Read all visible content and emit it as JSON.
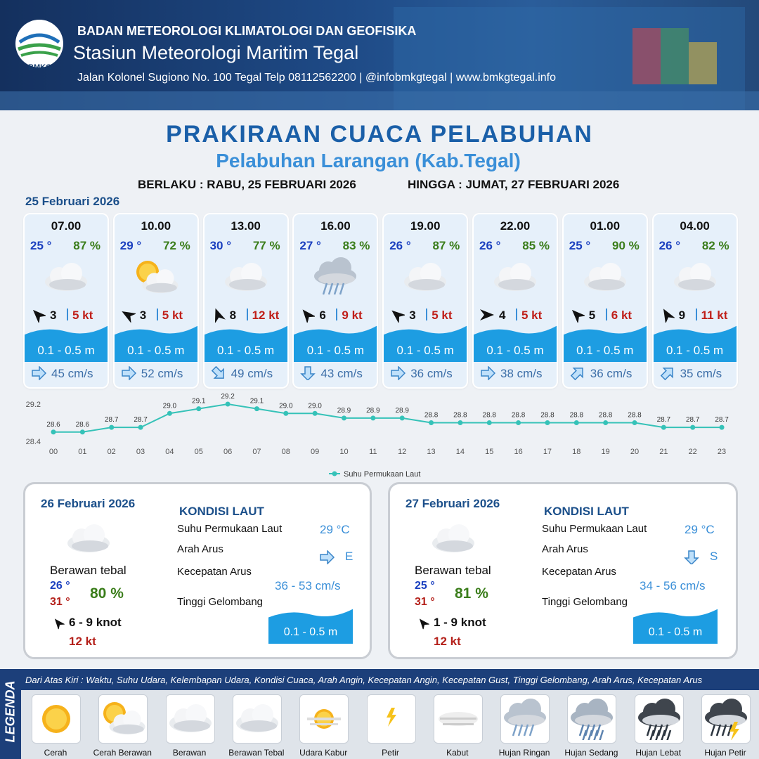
{
  "header": {
    "agency": "BADAN METEOROLOGI KLIMATOLOGI DAN GEOFISIKA",
    "station": "Stasiun Meteorologi Maritim Tegal",
    "address": "Jalan Kolonel Sugiono No. 100 Tegal Telp 08112562200 | @infobmkgtegal  | www.bmkgtegal.info",
    "logo_text": "BMKG"
  },
  "title": "PRAKIRAAN CUACA PELABUHAN",
  "subtitle": "Pelabuhan Larangan (Kab.Tegal)",
  "valid_from": "BERLAKU : RABU, 25 FEBRUARI 2026",
  "valid_to": "HINGGA :  JUMAT, 27 FEBRUARI 2026",
  "day1": {
    "date": "25 Februari 2026",
    "slots": [
      {
        "time": "07.00",
        "temp": "25 °",
        "humidity": "87 %",
        "wind": "3",
        "gust": "5 kt",
        "wave": "0.1 - 0.5 m",
        "current": "45 cm/s"
      },
      {
        "time": "10.00",
        "temp": "29 °",
        "humidity": "72 %",
        "wind": "3",
        "gust": "5 kt",
        "wave": "0.1 - 0.5 m",
        "current": "52 cm/s"
      },
      {
        "time": "13.00",
        "temp": "30 °",
        "humidity": "77 %",
        "wind": "8",
        "gust": "12 kt",
        "wave": "0.1 - 0.5 m",
        "current": "49 cm/s"
      },
      {
        "time": "16.00",
        "temp": "27 °",
        "humidity": "83 %",
        "wind": "6",
        "gust": "9 kt",
        "wave": "0.1 - 0.5 m",
        "current": "43 cm/s"
      },
      {
        "time": "19.00",
        "temp": "26 °",
        "humidity": "87 %",
        "wind": "3",
        "gust": "5 kt",
        "wave": "0.1 - 0.5 m",
        "current": "36 cm/s"
      },
      {
        "time": "22.00",
        "temp": "26 °",
        "humidity": "85 %",
        "wind": "4",
        "gust": "5 kt",
        "wave": "0.1 - 0.5 m",
        "current": "38 cm/s"
      },
      {
        "time": "01.00",
        "temp": "25 °",
        "humidity": "90 %",
        "wind": "5",
        "gust": "6 kt",
        "wave": "0.1 - 0.5 m",
        "current": "36 cm/s"
      },
      {
        "time": "04.00",
        "temp": "26 °",
        "humidity": "82 %",
        "wind": "9",
        "gust": "11 kt",
        "wave": "0.1 - 0.5 m",
        "current": "35 cm/s"
      }
    ]
  },
  "chart_data": {
    "type": "line",
    "categories": [
      "00",
      "01",
      "02",
      "03",
      "04",
      "05",
      "06",
      "07",
      "08",
      "09",
      "10",
      "11",
      "12",
      "13",
      "14",
      "15",
      "16",
      "17",
      "18",
      "19",
      "20",
      "21",
      "22",
      "23"
    ],
    "series": [
      {
        "name": "Suhu Permukaan Laut",
        "color": "#35c2b8",
        "values": [
          28.6,
          28.6,
          28.7,
          28.7,
          29.0,
          29.1,
          29.2,
          29.1,
          29.0,
          29.0,
          28.9,
          28.9,
          28.9,
          28.8,
          28.8,
          28.8,
          28.8,
          28.8,
          28.8,
          28.8,
          28.8,
          28.7,
          28.7,
          28.7
        ],
        "value_labels": [
          "28.6",
          "28.6",
          "28.7",
          "28.7",
          "29.0",
          "29.1",
          "29.2",
          "29.1",
          "29.0",
          "29.0",
          "28.9",
          "28.9",
          "28.9",
          "28.8",
          "28.8",
          "28.8",
          "28.8",
          "28.8",
          "28.8",
          "28.8",
          "28.8",
          "28.7",
          "28.7",
          "28.7"
        ]
      }
    ],
    "ylim": [
      28.4,
      29.2
    ],
    "yticks": [
      28.4,
      29.2
    ],
    "grid": false,
    "legend": "bottom"
  },
  "day2": {
    "date": "26 Februari 2026",
    "condition": "Berawan tebal",
    "temp_min": "26 °",
    "temp_max": "31 °",
    "humidity": "80 %",
    "wind": "6 - 9 knot",
    "gust": "12 kt",
    "sea_heading": "KONDISI LAUT",
    "sea_labels": [
      "Suhu Permukaan Laut",
      "Arah Arus",
      "Kecepatan Arus",
      "Tinggi Gelombang"
    ],
    "sst": "29 °C",
    "current_dir": "E",
    "current_speed": "36  - 53 cm/s",
    "wave": "0.1 - 0.5 m"
  },
  "day3": {
    "date": "27 Februari 2026",
    "condition": "Berawan tebal",
    "temp_min": "25 °",
    "temp_max": "31 °",
    "humidity": "81 %",
    "wind": "1 - 9 knot",
    "gust": "12 kt",
    "sea_heading": "KONDISI LAUT",
    "sea_labels": [
      "Suhu Permukaan Laut",
      "Arah Arus",
      "Kecepatan Arus",
      "Tinggi Gelombang"
    ],
    "sst": "29 °C",
    "current_dir": "S",
    "current_speed": "34 - 56 cm/s",
    "wave": "0.1 - 0.5 m"
  },
  "legend": {
    "heading": "LEGENDA",
    "description": "Dari Atas Kiri : Waktu, Suhu Udara, Kelembapan Udara, Kondisi Cuaca, Arah Angin, Kecepatan Angin, Kecepatan Gust, Tinggi Gelombang, Arah Arus, Kecepatan Arus",
    "items": [
      "Cerah",
      "Cerah Berawan",
      "Berawan",
      "Berawan Tebal",
      "Udara Kabur",
      "Petir",
      "Kabut",
      "Hujan Ringan",
      "Hujan Sedang",
      "Hujan Lebat",
      "Hujan Petir"
    ]
  }
}
